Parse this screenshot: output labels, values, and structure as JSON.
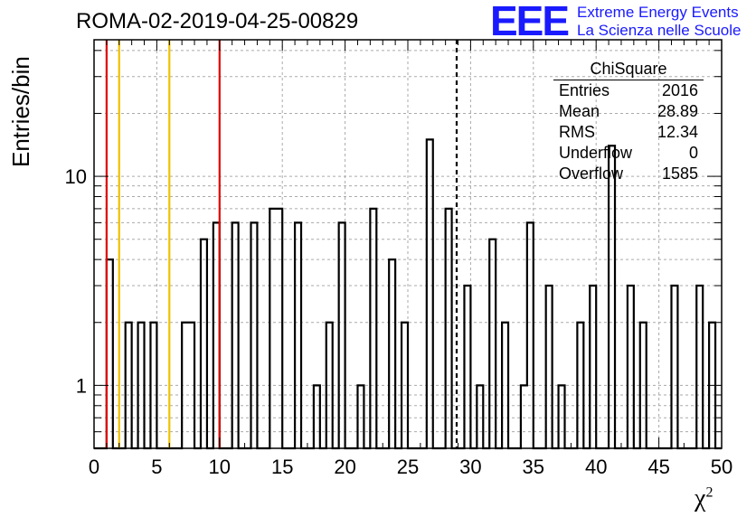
{
  "title": "ROMA-02-2019-04-25-00829",
  "logo": {
    "mark": "EEE",
    "line1": "Extreme Energy Events",
    "line2": "La Scienza nelle Scuole"
  },
  "stats_box": {
    "title": "ChiSquare",
    "rows": [
      {
        "label": "Entries",
        "value": "2016"
      },
      {
        "label": "Mean",
        "value": "28.89"
      },
      {
        "label": "RMS",
        "value": "12.34"
      },
      {
        "label": "Underflow",
        "value": "0"
      },
      {
        "label": "Overflow",
        "value": "1585"
      }
    ]
  },
  "colors": {
    "histogram": "#000000",
    "red_line": "#e00000",
    "yellow_line": "#f0c000",
    "grid": "#aaaaaa"
  },
  "chart_data": {
    "type": "histogram",
    "xlabel": "χ²",
    "xlabel_base": "χ",
    "xlabel_sup": "2",
    "ylabel": "Entries/bin",
    "xlim": [
      0,
      50
    ],
    "ylim": [
      0.5,
      45
    ],
    "log_y": true,
    "grid": true,
    "bin_width": 0.5,
    "x_ticks": [
      0,
      5,
      10,
      15,
      20,
      25,
      30,
      35,
      40,
      45,
      50
    ],
    "y_ticks": [
      1,
      10
    ],
    "values": [
      0,
      0,
      4,
      0,
      0,
      2,
      0,
      2,
      0,
      2,
      0,
      0,
      0,
      0,
      2,
      2,
      0,
      5,
      0,
      6,
      0,
      0,
      6,
      0,
      0,
      6,
      0,
      0,
      7,
      7,
      0,
      0,
      6,
      0,
      0,
      1,
      0,
      2,
      0,
      6,
      0,
      0,
      1,
      0,
      7,
      0,
      0,
      4,
      0,
      2,
      0,
      0,
      0,
      15,
      0,
      0,
      7,
      0,
      0,
      3,
      0,
      1,
      0,
      5,
      0,
      2,
      0,
      0,
      1,
      6,
      0,
      0,
      3,
      0,
      1,
      0,
      0,
      2,
      0,
      3,
      0,
      0,
      14,
      0,
      0,
      3,
      0,
      2,
      0,
      0,
      0,
      0,
      3,
      0,
      0,
      0,
      3,
      0,
      2,
      0
    ],
    "vertical_lines": [
      {
        "x": 1,
        "color": "red",
        "style": "solid"
      },
      {
        "x": 2,
        "color": "yellow",
        "style": "solid"
      },
      {
        "x": 6,
        "color": "yellow",
        "style": "solid"
      },
      {
        "x": 10,
        "color": "red",
        "style": "solid"
      },
      {
        "x": 28.89,
        "color": "black",
        "style": "dashed"
      }
    ]
  }
}
